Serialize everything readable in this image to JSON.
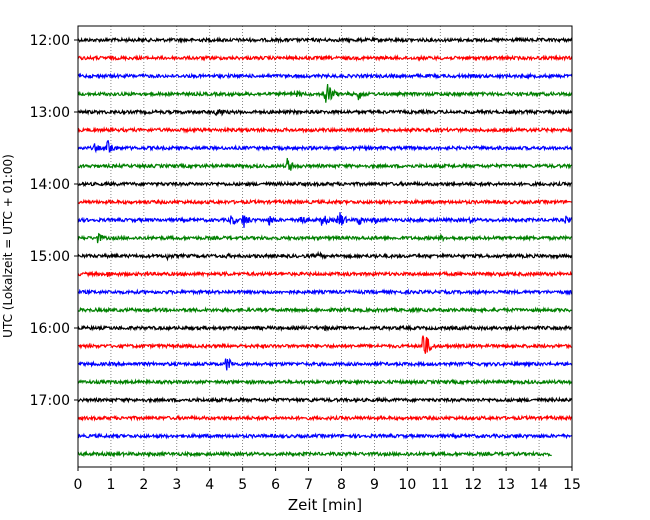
{
  "chart_data": {
    "type": "line",
    "title": "",
    "xlabel": "Zeit  [min]",
    "ylabel": "UTC (Lokalzeit = UTC + 01:00)",
    "xlim": [
      0,
      15
    ],
    "x_ticks": [
      0,
      1,
      2,
      3,
      4,
      5,
      6,
      7,
      8,
      9,
      10,
      11,
      12,
      13,
      14,
      15
    ],
    "y_tick_labels": [
      "12:00",
      "13:00",
      "14:00",
      "15:00",
      "16:00",
      "17:00"
    ],
    "grid": "vertical dotted",
    "trace_interval_minutes": 15,
    "colors_cycle": [
      "#000000",
      "#ff0000",
      "#0000ff",
      "#008000"
    ],
    "traces": [
      {
        "start": "12:00",
        "events": [
          {
            "x": 11.5,
            "amp": 2
          }
        ]
      },
      {
        "start": "12:15",
        "events": []
      },
      {
        "start": "12:30",
        "events": []
      },
      {
        "start": "12:45",
        "events": [
          {
            "x": 6.6,
            "amp": 5
          },
          {
            "x": 7.5,
            "amp": 18
          },
          {
            "x": 8.5,
            "amp": 7
          },
          {
            "x": 13.3,
            "amp": 3
          }
        ]
      },
      {
        "start": "13:00",
        "events": [
          {
            "x": 4.2,
            "amp": 8
          }
        ]
      },
      {
        "start": "13:15",
        "events": []
      },
      {
        "start": "13:30",
        "events": [
          {
            "x": 0.5,
            "amp": 5
          },
          {
            "x": 0.9,
            "amp": 10
          }
        ]
      },
      {
        "start": "13:45",
        "events": [
          {
            "x": 6.35,
            "amp": 9
          }
        ]
      },
      {
        "start": "14:00",
        "events": []
      },
      {
        "start": "14:15",
        "events": []
      },
      {
        "start": "14:30",
        "events": [
          {
            "x": 4.6,
            "amp": 8
          },
          {
            "x": 5.0,
            "amp": 10
          },
          {
            "x": 5.8,
            "amp": 6
          },
          {
            "x": 6.7,
            "amp": 9
          },
          {
            "x": 7.4,
            "amp": 8
          },
          {
            "x": 7.9,
            "amp": 12
          },
          {
            "x": 8.5,
            "amp": 7
          },
          {
            "x": 9.0,
            "amp": 5
          },
          {
            "x": 11.9,
            "amp": 4
          },
          {
            "x": 14.8,
            "amp": 5
          }
        ]
      },
      {
        "start": "14:45",
        "events": [
          {
            "x": 0.6,
            "amp": 6
          },
          {
            "x": 11.0,
            "amp": 4
          }
        ]
      },
      {
        "start": "15:00",
        "events": [
          {
            "x": 2.7,
            "amp": 4
          },
          {
            "x": 4.5,
            "amp": 3
          },
          {
            "x": 7.3,
            "amp": 4
          },
          {
            "x": 9.0,
            "amp": 3
          },
          {
            "x": 12.3,
            "amp": 3
          }
        ]
      },
      {
        "start": "15:15",
        "events": [
          {
            "x": 0.9,
            "amp": 4
          },
          {
            "x": 2.1,
            "amp": 3
          },
          {
            "x": 4.5,
            "amp": 3
          },
          {
            "x": 8.2,
            "amp": 3
          },
          {
            "x": 10.5,
            "amp": 3
          },
          {
            "x": 12.8,
            "amp": 3
          }
        ]
      },
      {
        "start": "15:30",
        "events": []
      },
      {
        "start": "15:45",
        "events": []
      },
      {
        "start": "16:00",
        "events": [
          {
            "x": 7.5,
            "amp": 3
          }
        ]
      },
      {
        "start": "16:15",
        "events": [
          {
            "x": 10.45,
            "amp": 20
          }
        ]
      },
      {
        "start": "16:30",
        "events": [
          {
            "x": 4.5,
            "amp": 9
          }
        ]
      },
      {
        "start": "16:45",
        "events": []
      },
      {
        "start": "17:00",
        "events": [
          {
            "x": 7.1,
            "amp": 3
          }
        ]
      },
      {
        "start": "17:15",
        "events": []
      },
      {
        "start": "17:30",
        "events": [
          {
            "x": 1.2,
            "amp": 3
          },
          {
            "x": 13.3,
            "amp": 3
          }
        ]
      },
      {
        "start": "17:45",
        "events": [
          {
            "x": 10.0,
            "amp": 3
          }
        ],
        "end_x": 14.4
      }
    ]
  }
}
